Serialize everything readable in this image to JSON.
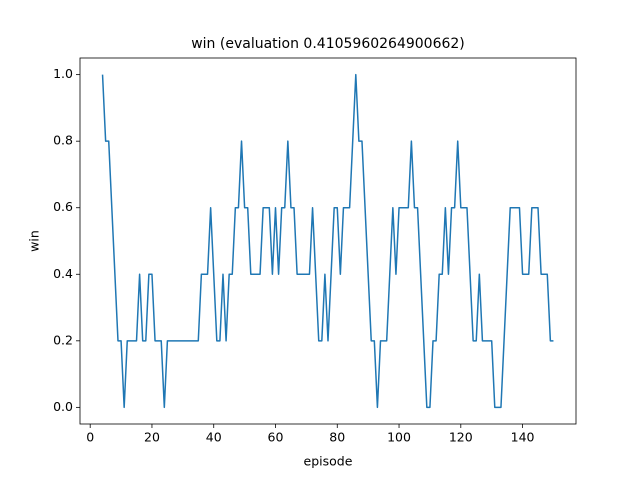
{
  "chart_data": {
    "type": "line",
    "title": "win (evaluation 0.4105960264900662)",
    "xlabel": "episode",
    "ylabel": "win",
    "x": [
      4,
      5,
      6,
      7,
      8,
      9,
      10,
      11,
      12,
      13,
      14,
      15,
      16,
      17,
      18,
      19,
      20,
      21,
      22,
      23,
      24,
      25,
      26,
      27,
      28,
      29,
      30,
      31,
      32,
      33,
      34,
      35,
      36,
      37,
      38,
      39,
      40,
      41,
      42,
      43,
      44,
      45,
      46,
      47,
      48,
      49,
      50,
      51,
      52,
      53,
      54,
      55,
      56,
      57,
      58,
      59,
      60,
      61,
      62,
      63,
      64,
      65,
      66,
      67,
      68,
      69,
      70,
      71,
      72,
      73,
      74,
      75,
      76,
      77,
      78,
      79,
      80,
      81,
      82,
      83,
      84,
      85,
      86,
      87,
      88,
      89,
      90,
      91,
      92,
      93,
      94,
      95,
      96,
      97,
      98,
      99,
      100,
      101,
      102,
      103,
      104,
      105,
      106,
      107,
      108,
      109,
      110,
      111,
      112,
      113,
      114,
      115,
      116,
      117,
      118,
      119,
      120,
      121,
      122,
      123,
      124,
      125,
      126,
      127,
      128,
      129,
      130,
      131,
      132,
      133,
      134,
      135,
      136,
      137,
      138,
      139,
      140,
      141,
      142,
      143,
      144,
      145,
      146,
      147,
      148,
      149,
      150
    ],
    "series": [
      {
        "name": "win",
        "color": "#1f77b4",
        "values": [
          1,
          0.8,
          0.8,
          0.6,
          0.4,
          0.2,
          0.2,
          0,
          0.2,
          0.2,
          0.2,
          0.2,
          0.4,
          0.2,
          0.2,
          0.4,
          0.4,
          0.2,
          0.2,
          0.2,
          0,
          0.2,
          0.2,
          0.2,
          0.2,
          0.2,
          0.2,
          0.2,
          0.2,
          0.2,
          0.2,
          0.2,
          0.4,
          0.4,
          0.4,
          0.6,
          0.4,
          0.2,
          0.2,
          0.4,
          0.2,
          0.4,
          0.4,
          0.6,
          0.6,
          0.8,
          0.6,
          0.6,
          0.4,
          0.4,
          0.4,
          0.4,
          0.6,
          0.6,
          0.6,
          0.4,
          0.6,
          0.4,
          0.6,
          0.6,
          0.8,
          0.6,
          0.6,
          0.4,
          0.4,
          0.4,
          0.4,
          0.4,
          0.6,
          0.4,
          0.2,
          0.2,
          0.4,
          0.2,
          0.4,
          0.6,
          0.6,
          0.4,
          0.6,
          0.6,
          0.6,
          0.8,
          1,
          0.8,
          0.8,
          0.6,
          0.4,
          0.2,
          0.2,
          0,
          0.2,
          0.2,
          0.2,
          0.4,
          0.6,
          0.4,
          0.6,
          0.6,
          0.6,
          0.6,
          0.8,
          0.6,
          0.6,
          0.4,
          0.2,
          0,
          0,
          0.2,
          0.2,
          0.4,
          0.4,
          0.6,
          0.4,
          0.6,
          0.6,
          0.8,
          0.6,
          0.6,
          0.6,
          0.4,
          0.2,
          0.2,
          0.4,
          0.2,
          0.2,
          0.2,
          0.2,
          0,
          0,
          0,
          0.2,
          0.4,
          0.6,
          0.6,
          0.6,
          0.6,
          0.4,
          0.4,
          0.4,
          0.6,
          0.6,
          0.6,
          0.4,
          0.4,
          0.4,
          0.2,
          0.2
        ]
      }
    ],
    "xlim": [
      -3.3,
      157.3
    ],
    "ylim": [
      -0.05,
      1.05
    ],
    "xticks": [
      0,
      20,
      40,
      60,
      80,
      100,
      120,
      140
    ],
    "yticks": [
      {
        "value": 0,
        "label": "0.0"
      },
      0.2,
      0.4,
      0.6,
      0.8,
      {
        "value": 1,
        "label": "1.0"
      }
    ]
  }
}
